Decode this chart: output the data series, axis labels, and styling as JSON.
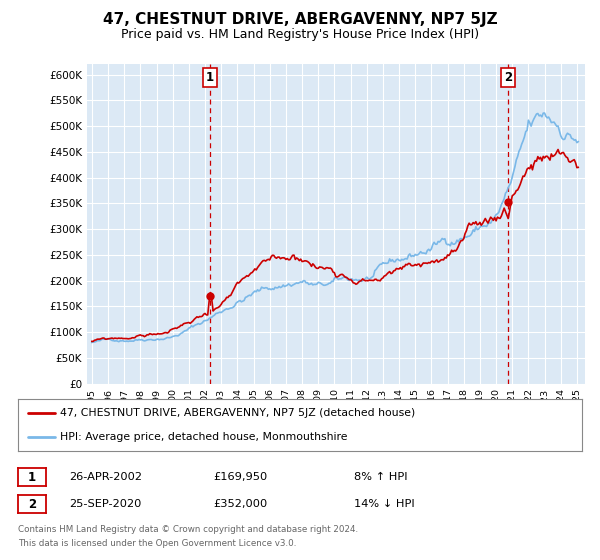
{
  "title": "47, CHESTNUT DRIVE, ABERGAVENNY, NP7 5JZ",
  "subtitle": "Price paid vs. HM Land Registry's House Price Index (HPI)",
  "title_fontsize": 11,
  "subtitle_fontsize": 9,
  "background_color": "#ffffff",
  "plot_bg_color": "#dce9f5",
  "grid_color": "#ffffff",
  "hpi_color": "#7ab8e8",
  "price_color": "#cc0000",
  "vline_color": "#cc0000",
  "ylim": [
    0,
    620000
  ],
  "yticks": [
    0,
    50000,
    100000,
    150000,
    200000,
    250000,
    300000,
    350000,
    400000,
    450000,
    500000,
    550000,
    600000
  ],
  "ytick_labels": [
    "£0",
    "£50K",
    "£100K",
    "£150K",
    "£200K",
    "£250K",
    "£300K",
    "£350K",
    "£400K",
    "£450K",
    "£500K",
    "£550K",
    "£600K"
  ],
  "xlim_start": 1994.7,
  "xlim_end": 2025.5,
  "xticks": [
    1995,
    1996,
    1997,
    1998,
    1999,
    2000,
    2001,
    2002,
    2003,
    2004,
    2005,
    2006,
    2007,
    2008,
    2009,
    2010,
    2011,
    2012,
    2013,
    2014,
    2015,
    2016,
    2017,
    2018,
    2019,
    2020,
    2021,
    2022,
    2023,
    2024,
    2025
  ],
  "purchase_1_x": 2002.32,
  "purchase_1_y": 169950,
  "purchase_2_x": 2020.73,
  "purchase_2_y": 352000,
  "legend_label_1": "47, CHESTNUT DRIVE, ABERGAVENNY, NP7 5JZ (detached house)",
  "legend_label_2": "HPI: Average price, detached house, Monmouthshire",
  "ann1_num": "1",
  "ann1_date": "26-APR-2002",
  "ann1_price": "£169,950",
  "ann1_pct": "8% ↑ HPI",
  "ann2_num": "2",
  "ann2_date": "25-SEP-2020",
  "ann2_price": "£352,000",
  "ann2_pct": "14% ↓ HPI",
  "footer_line1": "Contains HM Land Registry data © Crown copyright and database right 2024.",
  "footer_line2": "This data is licensed under the Open Government Licence v3.0."
}
